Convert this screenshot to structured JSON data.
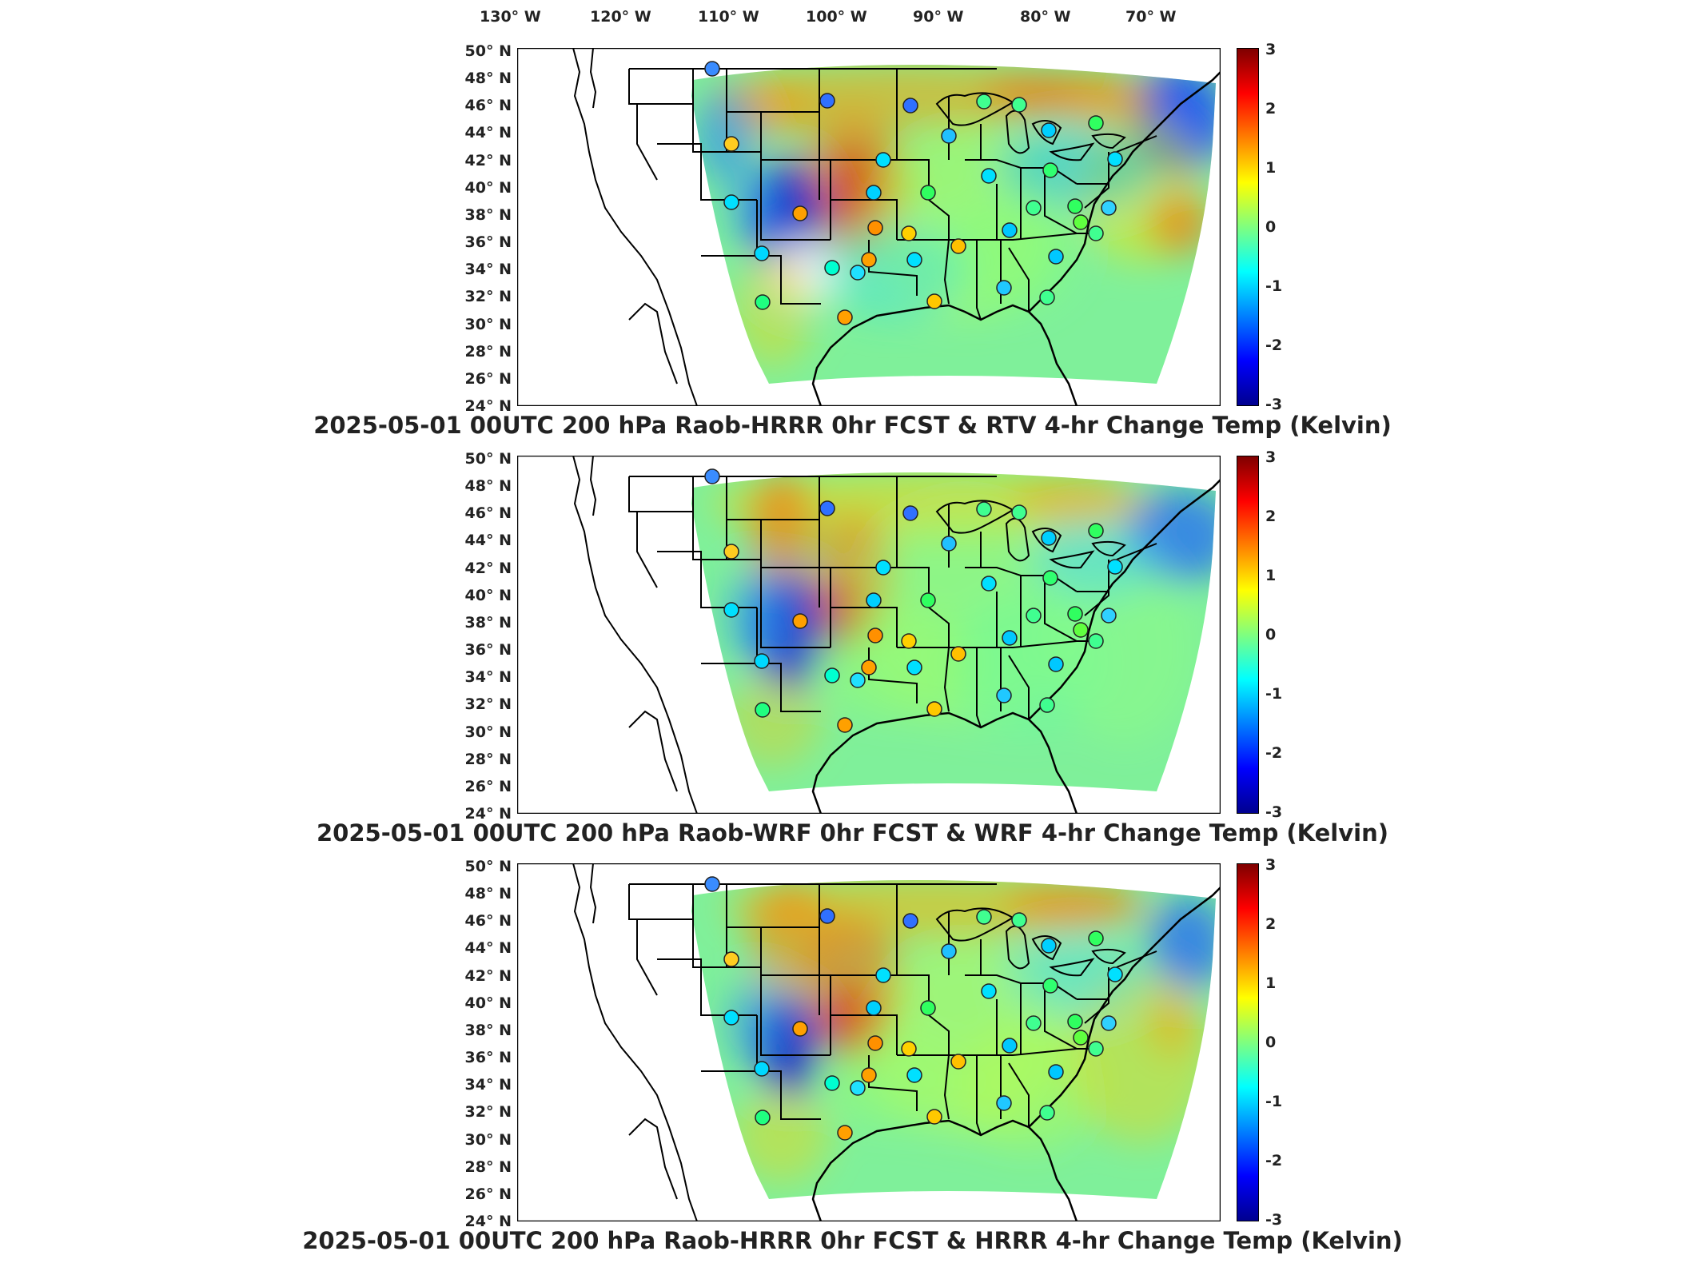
{
  "lon_labels": [
    {
      "text": "130° W",
      "lon": -130
    },
    {
      "text": "120° W",
      "lon": -120
    },
    {
      "text": "110° W",
      "lon": -110
    },
    {
      "text": "100° W",
      "lon": -100
    },
    {
      "text": "90° W",
      "lon": -90
    },
    {
      "text": "80° W",
      "lon": -80
    },
    {
      "text": "70° W",
      "lon": -70
    }
  ],
  "lat_labels": [
    "50° N",
    "48° N",
    "46° N",
    "44° N",
    "42° N",
    "40° N",
    "38° N",
    "36° N",
    "34° N",
    "32° N",
    "30° N",
    "28° N",
    "26° N",
    "24° N"
  ],
  "colorbar": {
    "ticks": [
      "3",
      "2",
      "1",
      "0",
      "-1",
      "-2",
      "-3"
    ],
    "min": -3,
    "max": 3,
    "colormap": "jet"
  },
  "panels": [
    {
      "title": "2025-05-01 00UTC 200 hPa Raob-HRRR 0hr FCST & RTV 4-hr Change Temp (Kelvin)"
    },
    {
      "title": "2025-05-01 00UTC 200 hPa Raob-WRF 0hr FCST & WRF 4-hr Change Temp (Kelvin)"
    },
    {
      "title": "2025-05-01 00UTC 200 hPa Raob-HRRR 0hr FCST & HRRR 4-hr Change Temp (Kelvin)"
    }
  ]
}
